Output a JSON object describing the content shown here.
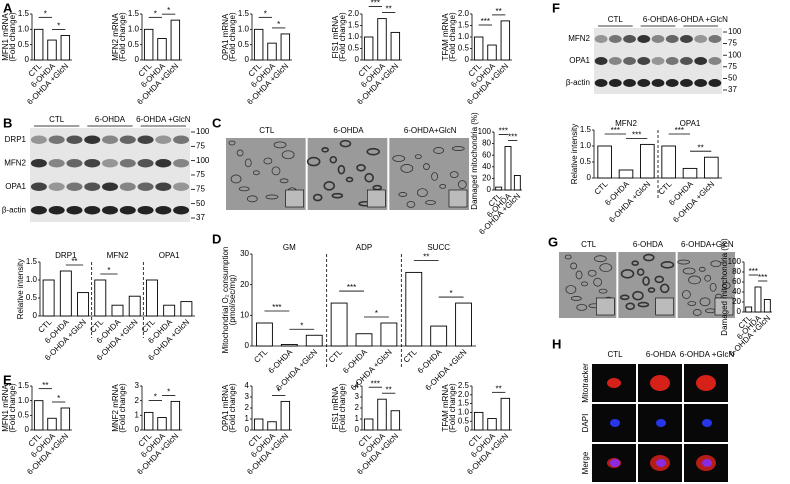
{
  "panels": [
    "A",
    "B",
    "C",
    "D",
    "E",
    "F",
    "G",
    "H"
  ],
  "blots": [
    {
      "columns": [
        "CTL",
        "6-OHDA",
        "6-OHDA +GlcN"
      ],
      "rows": [
        "DRP1",
        "MFN2",
        "OPA1",
        "β-actin"
      ],
      "markers": [
        "100",
        "75",
        "100",
        "75",
        "75",
        "50",
        "37"
      ]
    },
    {
      "columns": [
        "CTL",
        "6-OHDA",
        "6-OHDA +GlcN"
      ],
      "rows": [
        "MFN2",
        "OPA1",
        "β-actin"
      ],
      "markers": [
        "100",
        "75",
        "100",
        "75",
        "50",
        "37"
      ]
    }
  ],
  "micrographs": [
    {
      "columns": [
        "CTL",
        "6-OHDA",
        "6-OHDA+GlcN"
      ]
    },
    {
      "columns": [
        "CTL",
        "6-OHDA",
        "6-OHDA+GlcN"
      ]
    }
  ],
  "fluorescence": {
    "columns": [
      "CTL",
      "6-OHDA",
      "6-OHDA +GlcN"
    ],
    "rows": [
      "Mitotracker",
      "DAPI",
      "Merge"
    ]
  },
  "chart_data": [
    {
      "type": "bar",
      "ylabel": [
        "MFN1 mRNA",
        "(Fold change)"
      ],
      "categories": [
        "CTL",
        "6-OHDA",
        "6-OHDA +GlcN"
      ],
      "values": [
        1.0,
        0.65,
        0.8
      ],
      "annotations": [
        "*",
        "*"
      ],
      "ylim": [
        0,
        1.5
      ],
      "yticks": [
        0,
        0.5,
        {
          "value": 1,
          "label": "1.0"
        },
        1.5
      ],
      "color": "#ffffff"
    },
    {
      "type": "bar",
      "ylabel": [
        "MFN2 mRNA",
        "(Fold change)"
      ],
      "categories": [
        "CTL",
        "6-OHDA",
        "6-OHDA +GlcN"
      ],
      "values": [
        1.0,
        0.7,
        1.3
      ],
      "annotations": [
        "*",
        "*"
      ],
      "ylim": [
        0,
        1.5
      ],
      "yticks": [
        0,
        0.5,
        {
          "value": 1,
          "label": "1.0"
        },
        1.5
      ],
      "color": "#ffffff"
    },
    {
      "type": "bar",
      "ylabel": [
        "OPA1 mRNA",
        "(Fold change)"
      ],
      "categories": [
        "CTL",
        "6-OHDA",
        "6-OHDA +GlcN"
      ],
      "values": [
        1.0,
        0.55,
        0.85
      ],
      "annotations": [
        "*",
        "*"
      ],
      "ylim": [
        0,
        1.5
      ],
      "yticks": [
        0,
        0.5,
        {
          "value": 1,
          "label": "1.0"
        },
        1.5
      ],
      "color": "#ffffff"
    },
    {
      "type": "bar",
      "ylabel": [
        "FIS1 mRNA",
        "(Fold change)"
      ],
      "categories": [
        "CTL",
        "6-OHDA",
        "6-OHDA +GlcN"
      ],
      "values": [
        1.0,
        1.8,
        1.2
      ],
      "annotations": [
        "***",
        "**"
      ],
      "ylim": [
        0,
        2
      ],
      "yticks": [
        0,
        0.5,
        {
          "value": 1,
          "label": "1.0"
        },
        1.5,
        {
          "value": 2,
          "label": "2.0"
        }
      ],
      "color": "#ffffff"
    },
    {
      "type": "bar",
      "ylabel": [
        "TFAM mRNA",
        "(Fold change)"
      ],
      "categories": [
        "CTL",
        "6-OHDA",
        "6-OHDA +GlcN"
      ],
      "values": [
        1.0,
        0.65,
        1.7
      ],
      "annotations": [
        "***",
        "**"
      ],
      "ylim": [
        0,
        2
      ],
      "yticks": [
        0,
        0.5,
        {
          "value": 1,
          "label": "1.0"
        },
        1.5,
        {
          "value": 2,
          "label": "2.0"
        }
      ],
      "color": "#ffffff"
    },
    {
      "type": "grouped_bar",
      "ylabel": [
        "Relative intensity"
      ],
      "categories": [
        "CTL",
        "6-OHDA",
        "6-OHDA +GlcN"
      ],
      "groups": [
        {
          "name": "DRP1",
          "values": [
            1.0,
            1.25,
            0.65
          ],
          "annotations": [
            null,
            "**"
          ]
        },
        {
          "name": "MFN2",
          "values": [
            1.0,
            0.3,
            0.55
          ],
          "annotations": [
            "*",
            null
          ]
        },
        {
          "name": "OPA1",
          "values": [
            1.0,
            0.3,
            0.4
          ],
          "annotations": [
            null,
            null
          ]
        }
      ],
      "ylim": [
        0,
        1.5
      ],
      "yticks": [
        0,
        0.5,
        {
          "value": 1,
          "label": "1.0"
        },
        1.5
      ],
      "color": "#ffffff"
    },
    {
      "type": "bar",
      "ylabel": [
        "Damaged mitochondria (%)"
      ],
      "categories": [
        "CTL",
        "6-OHDA",
        "6-OHDA +GlcN"
      ],
      "values": [
        5,
        75,
        25
      ],
      "annotations": [
        "***",
        "***"
      ],
      "ylim": [
        0,
        100
      ],
      "yticks": [
        0,
        20,
        40,
        60,
        80,
        100
      ],
      "color": "#ffffff"
    },
    {
      "type": "grouped_bar",
      "ylabel": [
        "Mitochondrial O₂ consumption",
        "(pmol/sec/mg)"
      ],
      "categories": [
        "CTL",
        "6-OHDA",
        "6-OHDA +GlcN"
      ],
      "groups": [
        {
          "name": "GM",
          "values": [
            7.5,
            0.5,
            3.5
          ],
          "annotations": [
            "***",
            "*"
          ]
        },
        {
          "name": "ADP",
          "values": [
            14,
            4,
            7.5
          ],
          "annotations": [
            "***",
            "*"
          ]
        },
        {
          "name": "SUCC",
          "values": [
            24,
            6.5,
            14
          ],
          "annotations": [
            "**",
            "*"
          ]
        }
      ],
      "ylim": [
        0,
        30
      ],
      "yticks": [
        0,
        10,
        20,
        30
      ],
      "color": "#ffffff"
    },
    {
      "type": "bar",
      "ylabel": [
        "MFN1 mRNA",
        "(Fold change)"
      ],
      "categories": [
        "CTL",
        "6-OHDA",
        "6-OHDA +GlcN"
      ],
      "values": [
        1.0,
        0.4,
        0.75
      ],
      "annotations": [
        "**",
        "*"
      ],
      "ylim": [
        0,
        1.5
      ],
      "yticks": [
        0,
        0.5,
        {
          "value": 1,
          "label": "1.0"
        },
        1.5
      ],
      "color": "#ffffff"
    },
    {
      "type": "bar",
      "ylabel": [
        "MNF2 mRNA",
        "(Fold change)"
      ],
      "categories": [
        "CTL",
        "6-OHDA",
        "6-OHDA +GlcN"
      ],
      "values": [
        1.2,
        0.85,
        1.95
      ],
      "annotations": [
        "*",
        "*"
      ],
      "ylim": [
        0,
        3
      ],
      "yticks": [
        0,
        1,
        2,
        3
      ],
      "color": "#ffffff"
    },
    {
      "type": "bar",
      "ylabel": [
        "OPA1 mRNA",
        "(Fold change)"
      ],
      "categories": [
        "CTL",
        "6-OHDA",
        "6-OHDA +GlcN"
      ],
      "values": [
        1.0,
        0.75,
        2.6
      ],
      "annotations": [
        null,
        "*"
      ],
      "ylim": [
        0,
        4
      ],
      "yticks": [
        0,
        1,
        2,
        3,
        4
      ],
      "color": "#ffffff"
    },
    {
      "type": "bar",
      "ylabel": [
        "FIS1 mRNA",
        "(Fold change)"
      ],
      "categories": [
        "CTL",
        "6-OHDA",
        "6-OHDA +GlcN"
      ],
      "values": [
        1.0,
        2.8,
        1.75
      ],
      "annotations": [
        "***",
        "**"
      ],
      "ylim": [
        0,
        4
      ],
      "yticks": [
        0,
        1,
        2,
        3,
        4
      ],
      "color": "#ffffff"
    },
    {
      "type": "bar",
      "ylabel": [
        "TFAM mRNA",
        "(Fold change)"
      ],
      "categories": [
        "CTL",
        "6-OHDA",
        "6-OHDA +GlcN"
      ],
      "values": [
        1.0,
        0.65,
        1.8
      ],
      "annotations": [
        null,
        "**"
      ],
      "ylim": [
        0,
        2.5
      ],
      "yticks": [
        0,
        0.5,
        {
          "value": 1,
          "label": "1.0"
        },
        1.5,
        {
          "value": 2,
          "label": "2.0"
        },
        2.5
      ],
      "color": "#ffffff"
    },
    {
      "type": "grouped_bar",
      "ylabel": [
        "Relative intensity"
      ],
      "categories": [
        "CTL",
        "6-OHDA",
        "6-OHDA +GlcN"
      ],
      "groups": [
        {
          "name": "MFN2",
          "values": [
            1.0,
            0.25,
            1.05
          ],
          "annotations": [
            "***",
            "***"
          ]
        },
        {
          "name": "OPA1",
          "values": [
            1.0,
            0.3,
            0.65
          ],
          "annotations": [
            "***",
            "**"
          ]
        }
      ],
      "ylim": [
        0,
        1.5
      ],
      "yticks": [
        0,
        0.5,
        {
          "value": 1,
          "label": "1.0"
        },
        1.5
      ],
      "color": "#ffffff"
    },
    {
      "type": "bar",
      "ylabel": [
        "Damaged mitochondria (%)"
      ],
      "categories": [
        "CTL",
        "6-OHDA",
        "6-OHDA +GlcN"
      ],
      "values": [
        10,
        50,
        25
      ],
      "annotations": [
        "***",
        "***"
      ],
      "ylim": [
        0,
        100
      ],
      "yticks": [
        0,
        20,
        40,
        60,
        80,
        100
      ],
      "color": "#ffffff"
    }
  ]
}
